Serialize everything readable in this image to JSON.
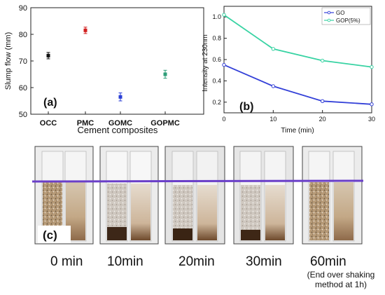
{
  "panel_a": {
    "ylabel": "Slump flow (mm)",
    "xlabel": "Cement composites",
    "panel_label": "(a)",
    "yticks": [
      "50",
      "60",
      "70",
      "80",
      "90"
    ]
  },
  "panel_b": {
    "ylabel": "Intensity at 230nm",
    "xlabel": "Time (min)",
    "panel_label": "(b)",
    "xticks": [
      "0",
      "10",
      "20",
      "30"
    ],
    "yticks": [
      "0.2",
      "0.4",
      "0.6",
      "0.8",
      "1.0"
    ],
    "legend": [
      "GO",
      "GOP(5%)"
    ]
  },
  "panel_c": {
    "panel_label": "(c)",
    "times": [
      "0 min",
      "10min",
      "20min",
      "30min",
      "60min"
    ],
    "note": [
      "(End over shaking",
      "method at 1h)"
    ]
  },
  "colors": {
    "OCC": "#111111",
    "PMC": "#d21e1e",
    "GOMC": "#2b3fd6",
    "GOPMC": "#2e9e78",
    "GO": "#3340d8",
    "GOP(5%)": "#38d3a3",
    "reference_line": "#6a3fc9"
  },
  "chart_data": [
    {
      "type": "scatter",
      "categories": [
        "OCC",
        "PMC",
        "GOMC",
        "GOPMC"
      ],
      "values": [
        72,
        81.5,
        56.5,
        65
      ],
      "errors": [
        1.2,
        1.2,
        1.5,
        1.5
      ],
      "xlabel": "Cement composites",
      "ylabel": "Slump flow (mm)",
      "ylim": [
        50,
        90
      ],
      "grid": false
    },
    {
      "type": "line",
      "x": [
        0,
        10,
        20,
        30
      ],
      "series": [
        {
          "name": "GO",
          "values": [
            0.55,
            0.35,
            0.21,
            0.18
          ]
        },
        {
          "name": "GOP(5%)",
          "values": [
            1.02,
            0.7,
            0.59,
            0.53
          ]
        }
      ],
      "xlabel": "Time (min)",
      "ylabel": "Intensity at 230nm",
      "xlim": [
        0,
        30
      ],
      "ylim": [
        0.1,
        1.1
      ],
      "legend": "top-right",
      "grid": false
    }
  ]
}
